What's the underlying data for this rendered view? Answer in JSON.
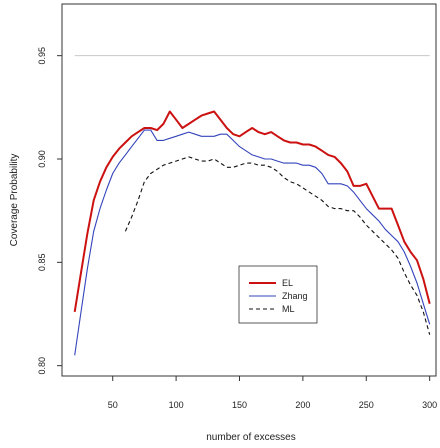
{
  "chart_data": {
    "type": "line",
    "title": "",
    "xlabel": "number of excesses",
    "ylabel": "Coverage Probability",
    "xlim": [
      10,
      305
    ],
    "ylim": [
      0.795,
      0.975
    ],
    "xticks": [
      50,
      100,
      150,
      200,
      250,
      300
    ],
    "yticks": [
      0.8,
      0.85,
      0.9,
      0.95
    ],
    "xtick_labels": [
      "50",
      "100",
      "150",
      "200",
      "250",
      "300"
    ],
    "ytick_labels": [
      "0.80",
      "0.85",
      "0.90",
      "0.95"
    ],
    "reference_line": {
      "y": 0.95,
      "color": "#c8c8c8"
    },
    "legend_position": "lower-right",
    "grid": false,
    "series": [
      {
        "name": "EL",
        "color": "#cc1111",
        "style": "solid",
        "x": [
          20,
          25,
          30,
          35,
          40,
          45,
          50,
          55,
          60,
          65,
          70,
          75,
          80,
          85,
          90,
          95,
          100,
          105,
          110,
          115,
          120,
          125,
          130,
          135,
          140,
          145,
          150,
          155,
          160,
          165,
          170,
          175,
          180,
          185,
          190,
          195,
          200,
          205,
          210,
          215,
          220,
          225,
          230,
          235,
          240,
          245,
          250,
          255,
          260,
          265,
          270,
          275,
          280,
          285,
          290,
          295,
          300
        ],
        "y": [
          0.826,
          0.845,
          0.864,
          0.88,
          0.889,
          0.896,
          0.901,
          0.905,
          0.908,
          0.911,
          0.913,
          0.915,
          0.915,
          0.914,
          0.917,
          0.923,
          0.919,
          0.915,
          0.917,
          0.919,
          0.921,
          0.922,
          0.923,
          0.919,
          0.915,
          0.912,
          0.911,
          0.913,
          0.915,
          0.913,
          0.912,
          0.913,
          0.911,
          0.909,
          0.908,
          0.908,
          0.907,
          0.907,
          0.906,
          0.904,
          0.902,
          0.901,
          0.898,
          0.894,
          0.887,
          0.887,
          0.888,
          0.882,
          0.876,
          0.876,
          0.876,
          0.868,
          0.86,
          0.855,
          0.851,
          0.842,
          0.83
        ]
      },
      {
        "name": "Zhang",
        "color": "#3344bb",
        "style": "solid",
        "x": [
          20,
          25,
          30,
          35,
          40,
          45,
          50,
          55,
          60,
          65,
          70,
          75,
          80,
          85,
          90,
          95,
          100,
          105,
          110,
          115,
          120,
          125,
          130,
          135,
          140,
          145,
          150,
          155,
          160,
          165,
          170,
          175,
          180,
          185,
          190,
          195,
          200,
          205,
          210,
          215,
          220,
          225,
          230,
          235,
          240,
          245,
          250,
          255,
          260,
          265,
          270,
          275,
          280,
          285,
          290,
          295,
          300
        ],
        "y": [
          0.805,
          0.826,
          0.847,
          0.865,
          0.876,
          0.885,
          0.893,
          0.898,
          0.902,
          0.906,
          0.91,
          0.914,
          0.914,
          0.909,
          0.909,
          0.91,
          0.911,
          0.912,
          0.913,
          0.912,
          0.911,
          0.911,
          0.911,
          0.912,
          0.912,
          0.909,
          0.906,
          0.904,
          0.902,
          0.901,
          0.9,
          0.9,
          0.899,
          0.898,
          0.898,
          0.898,
          0.897,
          0.897,
          0.896,
          0.893,
          0.888,
          0.888,
          0.888,
          0.887,
          0.884,
          0.88,
          0.876,
          0.873,
          0.87,
          0.866,
          0.863,
          0.86,
          0.855,
          0.848,
          0.84,
          0.83,
          0.82
        ]
      },
      {
        "name": "ML",
        "color": "#111111",
        "style": "dashed",
        "x": [
          60,
          65,
          70,
          75,
          80,
          85,
          90,
          95,
          100,
          105,
          110,
          115,
          120,
          125,
          130,
          135,
          140,
          145,
          150,
          155,
          160,
          165,
          170,
          175,
          180,
          185,
          190,
          195,
          200,
          205,
          210,
          215,
          220,
          225,
          230,
          235,
          240,
          245,
          250,
          255,
          260,
          265,
          270,
          275,
          280,
          285,
          290,
          295,
          300
        ],
        "y": [
          0.865,
          0.872,
          0.88,
          0.889,
          0.893,
          0.895,
          0.897,
          0.898,
          0.899,
          0.9,
          0.901,
          0.9,
          0.899,
          0.899,
          0.9,
          0.898,
          0.896,
          0.896,
          0.897,
          0.898,
          0.898,
          0.897,
          0.897,
          0.896,
          0.894,
          0.891,
          0.889,
          0.888,
          0.886,
          0.884,
          0.882,
          0.88,
          0.877,
          0.876,
          0.876,
          0.875,
          0.875,
          0.872,
          0.868,
          0.865,
          0.862,
          0.859,
          0.856,
          0.852,
          0.845,
          0.839,
          0.834,
          0.826,
          0.815
        ]
      }
    ]
  }
}
